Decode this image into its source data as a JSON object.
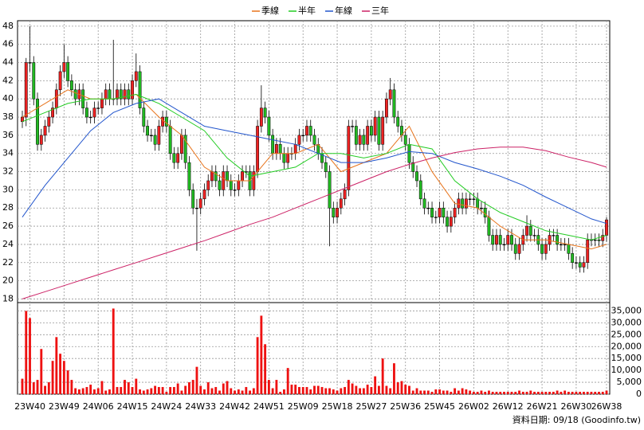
{
  "chart_data": {
    "type": "candlestick",
    "legend": "top",
    "source": "資料日期: 09/18 (Goodinfo.tw)",
    "up_color": "#ee2222",
    "down_color": "#22bb22",
    "categories": [
      null,
      null,
      "23W40",
      null,
      null,
      null,
      null,
      null,
      null,
      null,
      null,
      "23W49",
      null,
      null,
      null,
      null,
      null,
      null,
      null,
      null,
      "24W06",
      null,
      null,
      null,
      null,
      null,
      null,
      null,
      null,
      "24W15",
      null,
      null,
      null,
      null,
      null,
      null,
      null,
      null,
      "24W24",
      null,
      null,
      null,
      null,
      null,
      null,
      null,
      null,
      "24W33",
      null,
      null,
      null,
      null,
      null,
      null,
      null,
      null,
      "24W42",
      null,
      null,
      null,
      null,
      null,
      null,
      null,
      null,
      "24W51",
      null,
      null,
      null,
      null,
      null,
      null,
      null,
      null,
      "25W09",
      null,
      null,
      null,
      null,
      null,
      null,
      null,
      null,
      "25W18",
      null,
      null,
      null,
      null,
      null,
      null,
      null,
      null,
      "25W27",
      null,
      null,
      null,
      null,
      null,
      null,
      null,
      null,
      "25W36",
      null,
      null,
      null,
      null,
      null,
      null,
      null,
      null,
      "25W45",
      null,
      null,
      null,
      null,
      null,
      null,
      null,
      null,
      "26W02",
      null,
      null,
      null,
      null,
      null,
      null,
      null,
      null,
      "26W12",
      null,
      null,
      null,
      null,
      null,
      null,
      null,
      null,
      "26W21",
      null,
      null,
      null,
      null,
      null,
      null,
      null,
      null,
      "26W30",
      null,
      null,
      null,
      null,
      null,
      null,
      null,
      "26W38"
    ],
    "open": [
      37.5,
      38,
      44,
      44,
      40,
      35,
      36,
      37,
      38,
      39,
      41,
      43,
      44,
      42,
      41,
      40,
      41,
      39,
      38,
      38,
      39,
      39,
      40,
      41,
      40,
      40,
      41,
      40,
      41,
      40,
      42,
      43,
      39,
      37,
      36,
      36,
      35,
      37,
      38,
      37,
      34,
      33,
      34,
      36,
      33,
      30,
      28,
      28,
      29,
      30,
      31,
      32,
      31,
      30,
      32,
      31,
      30,
      30,
      31,
      32,
      32,
      30,
      32,
      37,
      39,
      38,
      36,
      34,
      35,
      34,
      33,
      34,
      34,
      35,
      36,
      36,
      37,
      36,
      35,
      34,
      33,
      32,
      28,
      27,
      28,
      29,
      30,
      37,
      37,
      35,
      36,
      35,
      37,
      36,
      38,
      35,
      38,
      40,
      41,
      38,
      37,
      36,
      35,
      33,
      32,
      31,
      29,
      28,
      28,
      27,
      27,
      28,
      27,
      26,
      27,
      28,
      29,
      28,
      29,
      29,
      29,
      28,
      28,
      27,
      25,
      24,
      25,
      24,
      24,
      25,
      24,
      23,
      24,
      25,
      26,
      25,
      25,
      24,
      23,
      24,
      25,
      25,
      24,
      24,
      24,
      23,
      22,
      22,
      21.5,
      22,
      24.5,
      24.5,
      24.5,
      24.4,
      25
    ],
    "high": [
      38.7,
      44.5,
      48,
      44.7,
      40.7,
      36.7,
      37.7,
      38.7,
      39.7,
      41.7,
      43.7,
      46,
      44.7,
      42.7,
      41.7,
      41.7,
      41.7,
      39.7,
      38.7,
      39.7,
      39.7,
      40.7,
      41.7,
      41.7,
      46.5,
      41.7,
      41.7,
      41.7,
      41.7,
      42.7,
      45,
      43.7,
      39.7,
      37.7,
      36.7,
      36.7,
      37.7,
      38.7,
      38.7,
      37.7,
      34.7,
      34.7,
      36.7,
      36.7,
      33.7,
      30.7,
      29,
      29.7,
      30.7,
      31.7,
      32.7,
      32.7,
      31.7,
      32.7,
      32.7,
      31.7,
      30.7,
      31.7,
      32.7,
      32.7,
      32.7,
      32.7,
      37.7,
      41.5,
      39.7,
      38.7,
      36.7,
      35.7,
      35.7,
      34.7,
      34.7,
      34.7,
      35.7,
      36.7,
      36.7,
      37.7,
      37.7,
      36.7,
      35.7,
      34.7,
      33.7,
      32.7,
      28.7,
      28.7,
      29.7,
      30.7,
      37.7,
      37.7,
      37.7,
      36.7,
      36.7,
      37.7,
      37.7,
      38.7,
      38.7,
      38.7,
      40.7,
      42.3,
      41.7,
      38.7,
      37.7,
      36.7,
      35.7,
      33.7,
      32.7,
      31.7,
      29.7,
      28.7,
      28.7,
      27.7,
      28.7,
      28.7,
      27.7,
      27.7,
      28.7,
      29.7,
      29.7,
      29.7,
      29.7,
      29.7,
      29.7,
      28.7,
      28.7,
      27.7,
      25.7,
      25.7,
      25.7,
      24.7,
      25.7,
      25.7,
      24.7,
      24.7,
      25.7,
      27.2,
      26.7,
      25.7,
      25.7,
      24.7,
      24.7,
      25.7,
      25.7,
      25.7,
      24.7,
      24.7,
      24.7,
      23.7,
      22.7,
      22.7,
      22.7,
      25.2,
      25.2,
      25.2,
      25.2,
      25.7,
      27
    ],
    "low": [
      36.8,
      37,
      43,
      39.3,
      34.3,
      34.3,
      35.3,
      36.3,
      37.3,
      38.3,
      40.3,
      42.3,
      41.3,
      40.3,
      39.3,
      39.3,
      38.3,
      37.3,
      37.3,
      37.3,
      38.3,
      38.3,
      39.3,
      39.3,
      39.3,
      39.3,
      39.3,
      39.3,
      39.3,
      39.3,
      41.3,
      38.3,
      36.3,
      35.3,
      35.3,
      34.3,
      34.3,
      36.3,
      36.3,
      33.3,
      32.3,
      32.3,
      33.3,
      32.3,
      29.3,
      27.3,
      23.3,
      27.3,
      28.3,
      29.3,
      30.3,
      30.3,
      29.3,
      29.3,
      30.3,
      29.3,
      29.3,
      29.3,
      30.3,
      31.3,
      29.3,
      29.3,
      31.3,
      36.3,
      37.3,
      35.3,
      33.3,
      33.3,
      33.3,
      32.3,
      32.3,
      33.3,
      33.3,
      34.3,
      35.3,
      35.3,
      35.3,
      34.3,
      33.3,
      32.3,
      31.3,
      23.8,
      26.3,
      26.3,
      27.3,
      28.3,
      29.3,
      36.3,
      34.3,
      34.3,
      34.3,
      34.3,
      35.3,
      35.3,
      34.3,
      34.3,
      37.3,
      39.3,
      37.3,
      36.3,
      35.3,
      34.3,
      32.3,
      31.3,
      30.3,
      28.3,
      27.3,
      27.3,
      26.3,
      26.3,
      26.3,
      26.3,
      25.3,
      25.3,
      26.3,
      27.3,
      27.3,
      27.3,
      28.3,
      28.3,
      27.3,
      27.3,
      26.3,
      24.3,
      23.3,
      23.3,
      23.3,
      23.3,
      23.3,
      23.3,
      22.3,
      22.3,
      23.3,
      24.3,
      24.3,
      24.3,
      23.3,
      22.3,
      22.3,
      23.3,
      24.3,
      23.3,
      23.3,
      23.3,
      22.3,
      21.3,
      21.3,
      20.9,
      20.9,
      21.3,
      23.8,
      23.8,
      23.7,
      23.7,
      24.3
    ],
    "close": [
      38,
      44,
      44,
      40,
      35,
      36,
      37,
      38,
      39,
      41,
      43,
      44,
      42,
      41,
      40,
      41,
      39,
      38,
      38,
      39,
      39,
      40,
      41,
      40,
      40,
      41,
      40,
      41,
      40,
      42,
      43,
      39,
      37,
      36,
      36,
      35,
      37,
      38,
      37,
      34,
      33,
      34,
      36,
      33,
      30,
      28,
      28,
      29,
      30,
      31,
      32,
      31,
      30,
      32,
      31,
      30,
      30,
      31,
      32,
      32,
      30,
      32,
      37,
      39,
      38,
      36,
      34,
      35,
      34,
      33,
      34,
      34,
      35,
      36,
      36,
      37,
      36,
      35,
      34,
      33,
      32,
      28,
      27,
      28,
      29,
      30,
      37,
      37,
      35,
      36,
      35,
      37,
      36,
      38,
      35,
      38,
      40,
      41,
      38,
      37,
      36,
      35,
      33,
      32,
      31,
      29,
      28,
      28,
      27,
      27,
      28,
      27,
      26,
      27,
      28,
      29,
      28,
      29,
      29,
      29,
      28,
      28,
      27,
      25,
      24,
      25,
      24,
      24,
      25,
      24,
      23,
      24,
      25,
      26,
      25,
      25,
      24,
      23,
      24,
      25,
      25,
      24,
      24,
      24,
      23,
      22,
      22,
      21.5,
      22,
      24.5,
      24.5,
      24.5,
      24.4,
      25,
      26.7
    ],
    "ylim": [
      17.6,
      48.6
    ],
    "yticks": [
      18,
      20,
      22,
      24,
      26,
      28,
      30,
      32,
      34,
      36,
      38,
      40,
      42,
      44,
      46,
      48
    ],
    "series": [
      {
        "name": "季線",
        "color": "#e8741c",
        "x": [
          0,
          6,
          12,
          18,
          24,
          30,
          36,
          42,
          48,
          54,
          60,
          66,
          72,
          78,
          84,
          90,
          96,
          102,
          108,
          114,
          120,
          126,
          132,
          138,
          144,
          150,
          154
        ],
        "values": [
          38,
          39.5,
          41,
          40,
          40,
          40.5,
          38,
          36,
          32.5,
          31,
          31,
          34,
          34,
          35,
          32,
          33,
          34,
          37,
          32,
          28.5,
          28,
          26,
          24.5,
          24.5,
          24,
          23.5,
          24
        ]
      },
      {
        "name": "半年",
        "color": "#22cc22",
        "x": [
          0,
          6,
          12,
          18,
          24,
          30,
          36,
          42,
          48,
          54,
          60,
          66,
          72,
          78,
          84,
          90,
          96,
          102,
          108,
          114,
          120,
          126,
          132,
          138,
          144,
          150,
          154
        ],
        "values": [
          37.5,
          38.5,
          39.5,
          40,
          40,
          40.5,
          39.5,
          38,
          36.5,
          33.5,
          31.5,
          32,
          32.5,
          34,
          34,
          33.5,
          34,
          35,
          34.5,
          31,
          29,
          27.5,
          26.5,
          25.5,
          25,
          24.5,
          25
        ]
      },
      {
        "name": "年線",
        "color": "#2255cc",
        "x": [
          0,
          6,
          12,
          18,
          24,
          30,
          36,
          42,
          48,
          54,
          60,
          66,
          72,
          78,
          84,
          90,
          96,
          102,
          108,
          114,
          120,
          126,
          132,
          138,
          144,
          150,
          154
        ],
        "values": [
          27,
          30.5,
          33.5,
          36.5,
          38.5,
          39.5,
          40,
          38.5,
          37,
          36.5,
          36,
          35.5,
          35,
          34,
          33,
          33,
          33.5,
          34.2,
          34,
          33,
          32.3,
          31.5,
          30.5,
          29.2,
          28,
          26.8,
          26.3
        ]
      },
      {
        "name": "三年",
        "color": "#cc2266",
        "x": [
          0,
          6,
          12,
          18,
          24,
          30,
          36,
          42,
          48,
          54,
          60,
          66,
          72,
          78,
          84,
          90,
          96,
          102,
          108,
          114,
          120,
          126,
          132,
          138,
          144,
          150,
          154
        ],
        "values": [
          18,
          18.8,
          19.6,
          20.4,
          21.2,
          22,
          22.8,
          23.6,
          24.4,
          25.3,
          26.2,
          27,
          28,
          29,
          30,
          31,
          32,
          32.8,
          33.5,
          34.1,
          34.5,
          34.7,
          34.7,
          34.3,
          33.6,
          33,
          32.5
        ]
      }
    ],
    "volume": {
      "color": "#ee1111",
      "values": [
        6500,
        35000,
        32000,
        5000,
        6000,
        19000,
        3500,
        5000,
        14000,
        24000,
        17000,
        14000,
        10000,
        6000,
        2500,
        2000,
        2500,
        3000,
        4000,
        2000,
        2500,
        5500,
        1500,
        2000,
        36000,
        3000,
        3000,
        6000,
        5000,
        3000,
        6500,
        2000,
        1500,
        2000,
        2500,
        3500,
        3000,
        3000,
        1000,
        3000,
        3000,
        4500,
        1500,
        3500,
        5000,
        6000,
        11500,
        3500,
        2000,
        5000,
        2500,
        3000,
        1500,
        4500,
        5500,
        2500,
        1500,
        2000,
        1500,
        3000,
        1500,
        2500,
        24000,
        33000,
        21000,
        6000,
        2500,
        6000,
        1000,
        2000,
        11000,
        4000,
        4000,
        3000,
        3000,
        3000,
        2000,
        3500,
        3500,
        3000,
        2500,
        2500,
        2000,
        1500,
        2500,
        3000,
        6000,
        4500,
        3500,
        2500,
        2500,
        4000,
        3000,
        7500,
        3500,
        15000,
        3500,
        2500,
        13000,
        5000,
        5500,
        4000,
        3500,
        1500,
        2500,
        1500,
        1500,
        1500,
        1000,
        2000,
        2000,
        1500,
        1500,
        1000,
        2500,
        1500,
        2500,
        2000,
        1500,
        1000,
        1000,
        1500,
        1000,
        1500,
        1000,
        1000,
        1000,
        1000,
        1000,
        1000,
        1000,
        1500,
        1000,
        1000,
        1500,
        1000,
        1000,
        1000,
        1000,
        1000,
        1000,
        1500,
        1000,
        1500,
        1000,
        1000,
        1000,
        1000,
        1000,
        1000,
        1000,
        1000,
        1000,
        1000,
        1500
      ],
      "ylim": [
        0,
        38500
      ],
      "yticks": [
        0,
        {
          "value": 5000,
          "label": "5,000"
        },
        {
          "value": 10000,
          "label": "10,000"
        },
        {
          "value": 15000,
          "label": "15,000"
        },
        {
          "value": 20000,
          "label": "20,000"
        },
        {
          "value": 25000,
          "label": "25,000"
        },
        {
          "value": 30000,
          "label": "30,000"
        },
        {
          "value": 35000,
          "label": "35,000"
        }
      ]
    }
  }
}
